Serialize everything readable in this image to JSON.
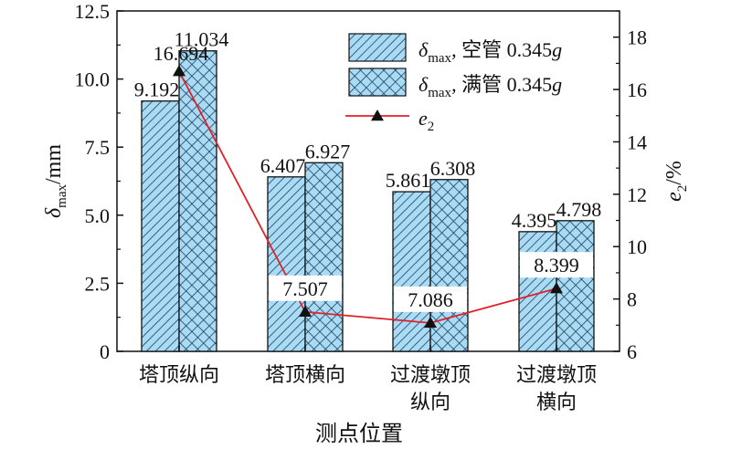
{
  "chart_data": {
    "type": "bar",
    "categories": [
      [
        "塔顶纵向"
      ],
      [
        "塔顶横向"
      ],
      [
        "过渡墩顶",
        "纵向"
      ],
      [
        "过渡墩顶",
        "横向"
      ]
    ],
    "xlabel": "测点位置",
    "ylabel_left": {
      "main": "δ",
      "sub": "max",
      "rest": "/mm"
    },
    "ylabel_right": {
      "main": "e",
      "sub": "2",
      "rest": "/%"
    },
    "ylim_left": [
      0,
      12.5
    ],
    "ylim_right": [
      6,
      19
    ],
    "yticks_left": [
      "0",
      "2.5",
      "5.0",
      "7.5",
      "10.0",
      "12.5"
    ],
    "yticks_right": [
      "6",
      "8",
      "10",
      "12",
      "14",
      "16",
      "18"
    ],
    "series": [
      {
        "name": "δmax, 空管 0.345g",
        "legend": {
          "main": "δ",
          "sub": "max",
          "rest": ", 空管 0.345",
          "italic_tail": "g"
        },
        "kind": "bar",
        "pattern": "diagonal-hatch",
        "values": [
          9.192,
          6.407,
          5.861,
          4.395
        ],
        "labels": [
          "9.192",
          "6.407",
          "5.861",
          "4.395"
        ]
      },
      {
        "name": "δmax, 满管 0.345g",
        "legend": {
          "main": "δ",
          "sub": "max",
          "rest": ", 满管 0.345",
          "italic_tail": "g"
        },
        "kind": "bar",
        "pattern": "cross-hatch",
        "values": [
          11.034,
          6.927,
          6.308,
          4.798
        ],
        "labels": [
          "11.034",
          "6.927",
          "6.308",
          "4.798"
        ]
      },
      {
        "name": "e2",
        "legend": {
          "main": "e",
          "sub": "2",
          "rest": "",
          "italic_tail": ""
        },
        "kind": "line",
        "axis": "right",
        "marker": "triangle",
        "values": [
          16.694,
          7.507,
          7.086,
          8.399
        ],
        "labels": [
          "16.694",
          "7.507",
          "7.086",
          "8.399"
        ]
      }
    ],
    "colors": {
      "bar_fill": "#a9dcf4",
      "hatch": "#1f3f60",
      "line": "#e0202a",
      "marker": "#111111",
      "axis": "#111111"
    },
    "legend_position": "top-right",
    "grid": false
  }
}
